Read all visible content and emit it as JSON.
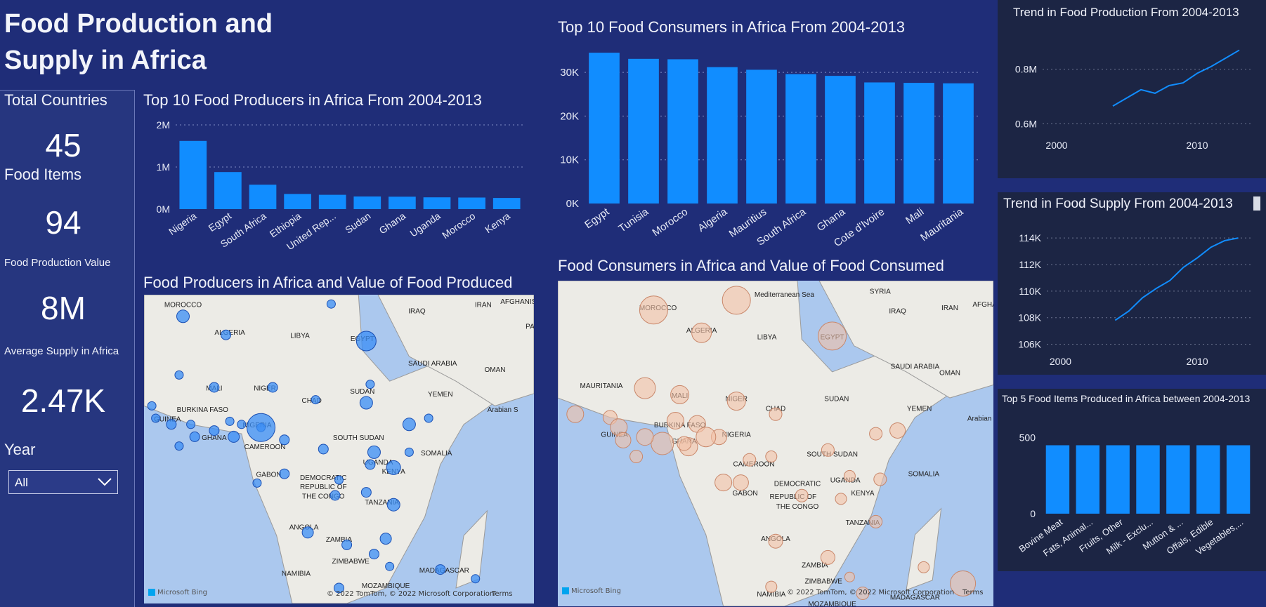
{
  "header": {
    "title_line1": "Food Production and",
    "title_line2": "Supply in Africa"
  },
  "kpis": {
    "total_countries_label": "Total Countries",
    "total_countries_value": "45",
    "food_items_label": "Food Items",
    "food_items_value": "94",
    "production_label": "Food Production Value",
    "production_value": "8M",
    "supply_label": "Average Supply in Africa",
    "supply_value": "2.47K"
  },
  "slicer": {
    "label": "Year",
    "value": "All"
  },
  "colors": {
    "bar": "#118dff",
    "producer_bubble": "#3a8ef6",
    "consumer_bubble": "#f3c2a6",
    "page_bg": "#1f2d78",
    "panel_bg": "#1c2544"
  },
  "charts": {
    "producers": {
      "title": "Top 10 Food Producers in Africa From 2004-2013",
      "chart_data": {
        "type": "bar",
        "categories": [
          "Nigeria",
          "Egypt",
          "South Africa",
          "Ethiopia",
          "United Rep...",
          "Sudan",
          "Ghana",
          "Uganda",
          "Morocco",
          "Kenya"
        ],
        "values": [
          1620000,
          880000,
          580000,
          360000,
          340000,
          300000,
          295000,
          280000,
          275000,
          265000
        ],
        "ylim": [
          0,
          2000000
        ],
        "yticks": [
          "0M",
          "1M",
          "2M"
        ],
        "grid": true
      }
    },
    "consumers": {
      "title": "Top 10 Food Consumers  in Africa From 2004-2013",
      "chart_data": {
        "type": "bar",
        "categories": [
          "Egypt",
          "Tunisia",
          "Morocco",
          "Algeria",
          "Mauritius",
          "South Africa",
          "Ghana",
          "Cote d'Ivoire",
          "Mali",
          "Mauritania"
        ],
        "values": [
          34500,
          33100,
          33000,
          31200,
          30600,
          29600,
          29200,
          27700,
          27600,
          27500
        ],
        "ylim": [
          0,
          35000
        ],
        "yticks": [
          "0K",
          "10K",
          "20K",
          "30K"
        ],
        "grid": true
      }
    },
    "production_trend": {
      "title": "Trend in Food Production From 2004-2013",
      "chart_data": {
        "type": "line",
        "x": [
          2004,
          2005,
          2006,
          2007,
          2008,
          2009,
          2010,
          2011,
          2012,
          2013
        ],
        "values": [
          665000,
          695000,
          725000,
          712000,
          740000,
          750000,
          785000,
          810000,
          840000,
          870000
        ],
        "xlim": [
          1999,
          2014
        ],
        "ylim": [
          560000,
          920000
        ],
        "xticks": [
          "2000",
          "2010"
        ],
        "yticks": [
          "0.6M",
          "0.8M"
        ]
      }
    },
    "supply_trend": {
      "title": "Trend in Food Supply From 2004-2013",
      "chart_data": {
        "type": "line",
        "x": [
          2004,
          2005,
          2006,
          2007,
          2008,
          2009,
          2010,
          2011,
          2012,
          2013
        ],
        "values": [
          107800,
          108500,
          109500,
          110200,
          110800,
          111800,
          112500,
          113300,
          113800,
          114000
        ],
        "xlim": [
          1999,
          2014
        ],
        "ylim": [
          105500,
          114800
        ],
        "xticks": [
          "2000",
          "2010"
        ],
        "yticks": [
          "106K",
          "108K",
          "110K",
          "112K",
          "114K"
        ]
      }
    },
    "top_items": {
      "title": "Top 5 Food Items Produced in Africa between 2004-2013",
      "chart_data": {
        "type": "bar",
        "categories": [
          "Bovine Meat",
          "Fats, Animal...",
          "Fruits, Other",
          "Milk - Exclu...",
          "Mutton & ...",
          "Offals, Edible",
          "Vegetables,..."
        ],
        "values": [
          450,
          450,
          450,
          450,
          450,
          450,
          450
        ],
        "ylim": [
          0,
          600
        ],
        "yticks": [
          "0",
          "500"
        ]
      }
    }
  },
  "maps": {
    "producers": {
      "title": "Food Producers in Africa and Value of Food Produced",
      "credit": "Microsoft Bing",
      "copyright": "© 2022 TomTom, © 2022 Microsoft Corporation",
      "terms": "Terms",
      "labels": [
        "MOROCCO",
        "ALGERIA",
        "LIBYA",
        "EGYPT",
        "IRAQ",
        "IRAN",
        "AFGHANIS",
        "SAUDI ARABIA",
        "OMAN",
        "YEMEN",
        "Arabian S",
        "MALI",
        "NIGER",
        "CHAD",
        "SUDAN",
        "BURKINA FASO",
        "GUINEA",
        "GHANA",
        "NIGERIA",
        "CAMEROON",
        "SOUTH SUDAN",
        "SOMALIA",
        "UGANDA",
        "KENYA",
        "GABON",
        "DEMOCRATIC",
        "REPUBLIC OF",
        "THE CONGO",
        "TANZANIA",
        "ANGOLA",
        "ZAMBIA",
        "ZIMBABWE",
        "NAMIBIA",
        "MADAGASCAR",
        "MOZAMBIQUE",
        "PA"
      ]
    },
    "consumers": {
      "title": "Food Consumers in Africa and Value of Food Consumed",
      "credit": "Microsoft Bing",
      "copyright": "© 2022 TomTom, © 2022 Microsoft Corporation",
      "terms": "Terms",
      "labels": [
        "Mediterranean Sea",
        "SYRIA",
        "IRAQ",
        "IRAN",
        "AFGHA",
        "MOROCCO",
        "ALGERIA",
        "LIBYA",
        "EGYPT",
        "SAUDI ARABIA",
        "OMAN",
        "MAURITANIA",
        "MALI",
        "NIGER",
        "CHAD",
        "SUDAN",
        "YEMEN",
        "Arabian Se",
        "BURKINA FASO",
        "GUINEA",
        "GHANA",
        "NIGERIA",
        "SOUTH SUDAN",
        "CAMEROON",
        "SOMALIA",
        "UGANDA",
        "KENYA",
        "GABON",
        "DEMOCRATIC",
        "REPUBLIC OF",
        "THE CONGO",
        "TANZANIA",
        "ANGOLA",
        "ZAMBIA",
        "ZIMBABWE",
        "NAMIBIA",
        "MADAGASCAR",
        "MOZAMBIQUE"
      ]
    }
  }
}
